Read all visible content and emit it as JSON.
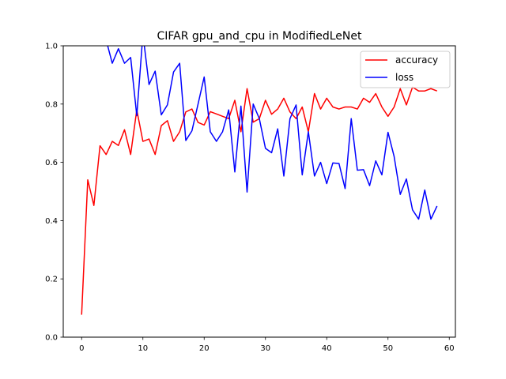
{
  "chart_data": {
    "type": "line",
    "title": "CIFAR gpu_and_cpu in ModifiedLeNet",
    "xlabel": "",
    "ylabel": "",
    "xlim": [
      -3,
      61
    ],
    "ylim": [
      0,
      1
    ],
    "x_ticks": [
      0,
      10,
      20,
      30,
      40,
      50,
      60
    ],
    "y_ticks": [
      "0.0",
      "0.2",
      "0.4",
      "0.6",
      "0.8",
      "1.0"
    ],
    "grid": false,
    "legend_position": "top-right",
    "series": [
      {
        "name": "accuracy",
        "color": "#ff0000",
        "x": [
          0,
          1,
          2,
          3,
          4,
          5,
          6,
          7,
          8,
          9,
          10,
          11,
          12,
          13,
          14,
          15,
          16,
          17,
          18,
          19,
          20,
          21,
          22,
          23,
          24,
          25,
          26,
          27,
          28,
          29,
          30,
          31,
          32,
          33,
          34,
          35,
          36,
          37,
          38,
          39,
          40,
          41,
          42,
          43,
          44,
          45,
          46,
          47,
          48,
          49,
          50,
          51,
          52,
          53,
          54,
          55,
          56,
          57,
          58
        ],
        "values": [
          0.077,
          0.54,
          0.452,
          0.657,
          0.627,
          0.672,
          0.658,
          0.712,
          0.627,
          0.78,
          0.672,
          0.68,
          0.627,
          0.726,
          0.743,
          0.672,
          0.705,
          0.773,
          0.783,
          0.737,
          0.728,
          0.774,
          0.766,
          0.758,
          0.75,
          0.813,
          0.705,
          0.853,
          0.738,
          0.75,
          0.813,
          0.765,
          0.783,
          0.82,
          0.773,
          0.75,
          0.79,
          0.705,
          0.836,
          0.783,
          0.82,
          0.79,
          0.783,
          0.79,
          0.79,
          0.783,
          0.82,
          0.806,
          0.836,
          0.79,
          0.758,
          0.79,
          0.853,
          0.797,
          0.858,
          0.845,
          0.845,
          0.853,
          0.845
        ]
      },
      {
        "name": "loss",
        "color": "#0000ff",
        "x": [
          4,
          5,
          6,
          7,
          8,
          9,
          10,
          11,
          12,
          13,
          14,
          15,
          16,
          17,
          18,
          19,
          20,
          21,
          22,
          23,
          24,
          25,
          26,
          27,
          28,
          29,
          30,
          31,
          32,
          33,
          34,
          35,
          36,
          37,
          38,
          39,
          40,
          41,
          42,
          43,
          44,
          45,
          46,
          47,
          48,
          49,
          50,
          51,
          52,
          53,
          54,
          55,
          56,
          57,
          58
        ],
        "values": [
          1.02,
          0.94,
          0.99,
          0.94,
          0.96,
          0.76,
          1.04,
          0.867,
          0.913,
          0.763,
          0.797,
          0.91,
          0.94,
          0.675,
          0.708,
          0.8,
          0.893,
          0.705,
          0.672,
          0.705,
          0.78,
          0.567,
          0.793,
          0.498,
          0.8,
          0.75,
          0.648,
          0.633,
          0.715,
          0.553,
          0.75,
          0.797,
          0.557,
          0.705,
          0.553,
          0.6,
          0.527,
          0.598,
          0.596,
          0.51,
          0.75,
          0.573,
          0.575,
          0.52,
          0.605,
          0.557,
          0.703,
          0.62,
          0.49,
          0.543,
          0.437,
          0.405,
          0.505,
          0.405,
          0.45
        ]
      }
    ]
  }
}
